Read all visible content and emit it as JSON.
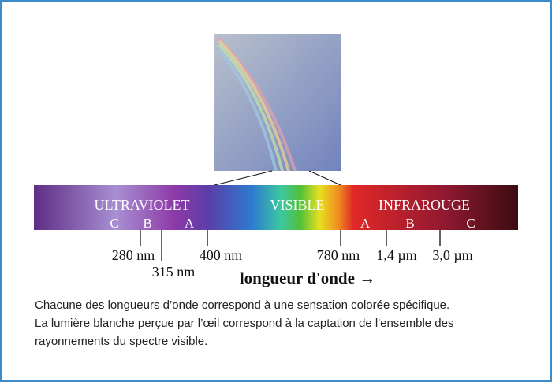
{
  "spectrum": {
    "regions": [
      "ULTRAVIOLET",
      "VISIBLE",
      "INFRAROUGE"
    ],
    "uv_bands": [
      "C",
      "B",
      "A"
    ],
    "ir_bands": [
      "A",
      "B",
      "C"
    ],
    "wavelengths": [
      "280 nm",
      "315 nm",
      "400 nm",
      "780 nm",
      "1,4 µm",
      "3,0 µm"
    ],
    "axis_label": "longueur d'onde →"
  },
  "caption": [
    "Chacune des longueurs d’onde correspond à une sensation colorée spécifique.",
    "La lumière blanche perçue par l’œil correspond à la captation de l'ensemble des",
    "rayonnements du spectre visible."
  ]
}
